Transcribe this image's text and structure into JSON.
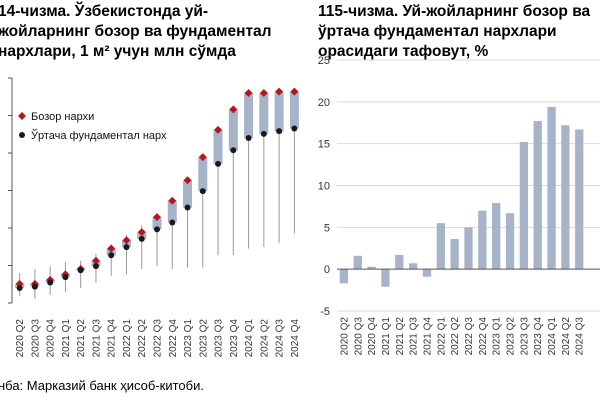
{
  "titles": {
    "left": [
      "14-чизма. Ўзбекистонда уй-",
      "жойларнинг бозор ва фундаментал",
      "нархлари, 1 м² учун млн сўмда"
    ],
    "right": [
      "115-чизма. Уй-жойларнинг бозор ва",
      "ўртача фундаментал нархлари",
      "орасидаги тафовут, %"
    ]
  },
  "source": "нба: Марказий банк ҳисоб-китоби.",
  "colors": {
    "market": "#b5171e",
    "fundamental": "#1a1a1a",
    "bar": "#a7b3c8",
    "whisker": "#9a9a9a",
    "grid": "#d9d9d9"
  },
  "chart_data": [
    {
      "type": "scatter",
      "categories": [
        "2020 Q2",
        "2020 Q3",
        "2020 Q4",
        "2021 Q1",
        "2021 Q2",
        "2021 Q3",
        "2021 Q4",
        "2022 Q1",
        "2022 Q2",
        "2022 Q3",
        "2022 Q4",
        "2023 Q1",
        "2023 Q2",
        "2023 Q3",
        "2023 Q4",
        "2024 Q1",
        "2024 Q2",
        "2024 Q3",
        "2024 Q4"
      ],
      "series": [
        {
          "name": "Бозор нархи",
          "values": [
            0.88,
            0.88,
            0.94,
            1.02,
            1.1,
            1.22,
            1.4,
            1.52,
            1.64,
            1.86,
            2.1,
            2.4,
            2.74,
            3.14,
            3.44,
            3.68,
            3.68,
            3.7,
            3.7
          ]
        },
        {
          "name": "Ўртача фундаментал нарх",
          "values": [
            0.82,
            0.84,
            0.9,
            0.98,
            1.08,
            1.14,
            1.3,
            1.42,
            1.54,
            1.68,
            1.78,
            2.0,
            2.24,
            2.64,
            2.84,
            3.02,
            3.08,
            3.12,
            3.16
          ]
        }
      ],
      "whisker_low": [
        0.7,
        0.66,
        0.72,
        0.76,
        0.82,
        0.9,
        1.0,
        1.02,
        1.1,
        1.14,
        1.1,
        1.12,
        1.12,
        1.3,
        1.3,
        1.4,
        1.42,
        1.48,
        1.62
      ],
      "whisker_high": [
        1.04,
        1.1,
        1.14,
        1.2,
        1.22,
        1.32,
        1.46,
        1.6,
        1.74,
        1.92,
        2.12,
        2.42,
        2.76,
        3.16,
        3.46,
        3.7,
        3.7,
        3.72,
        3.72
      ],
      "ylim": [
        0.6,
        3.9
      ],
      "legend": [
        "Бозор нархи",
        "Ўртача фундаментал нарх"
      ],
      "legend_position": "top-left",
      "grid": false
    },
    {
      "type": "bar",
      "categories": [
        "2020 Q2",
        "2020 Q3",
        "2020 Q4",
        "2021 Q1",
        "2021 Q2",
        "2021 Q3",
        "2021 Q4",
        "2022 Q1",
        "2022 Q2",
        "2022 Q3",
        "2022 Q4",
        "2023 Q1",
        "2023 Q2",
        "2023 Q3",
        "2023 Q4",
        "2024 Q1",
        "2024 Q2",
        "2024 Q3"
      ],
      "values": [
        -1.7,
        1.6,
        0.3,
        -2.1,
        1.7,
        0.7,
        -0.9,
        5.5,
        3.6,
        5.0,
        7.0,
        7.9,
        6.7,
        15.2,
        17.7,
        19.4,
        17.2,
        16.7
      ],
      "ylim": [
        -5,
        25
      ],
      "yticks": [
        -5,
        0,
        5,
        10,
        15,
        20,
        25
      ],
      "grid": true
    }
  ]
}
